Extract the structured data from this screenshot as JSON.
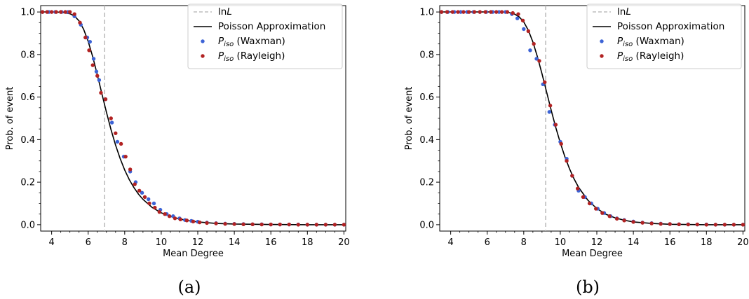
{
  "chart_data": [
    {
      "type": "line",
      "panel_label": "(a)",
      "xlabel": "Mean Degree",
      "ylabel": "Prob. of event",
      "xlim": [
        3.4,
        20.1
      ],
      "ylim": [
        -0.03,
        1.03
      ],
      "xticks": [
        "4",
        "6",
        "8",
        "10",
        "12",
        "14",
        "16",
        "18",
        "20"
      ],
      "yticks": [
        "0.0",
        "0.2",
        "0.4",
        "0.6",
        "0.8",
        "1.0"
      ],
      "vline": {
        "name": "lnL",
        "x": 6.9
      },
      "poisson_center": 6.9,
      "legend_position": "top-right",
      "legend": [
        "lnL",
        "Poisson Approximation",
        "P_iso (Waxman)",
        "P_iso (Rayleigh)"
      ],
      "series": [
        {
          "name": "Poisson Approximation",
          "kind": "line",
          "color": "#000000",
          "x": [
            3.5,
            4.0,
            4.5,
            5.0,
            5.25,
            5.5,
            5.75,
            6.0,
            6.25,
            6.5,
            6.75,
            7.0,
            7.25,
            7.5,
            7.75,
            8.0,
            8.25,
            8.5,
            8.75,
            9.0,
            9.5,
            10.0,
            10.5,
            11.0,
            11.5,
            12.0,
            13.0,
            14.0,
            16.0,
            18.0,
            20.0
          ],
          "y": [
            1.0,
            1.0,
            0.999,
            0.992,
            0.981,
            0.958,
            0.919,
            0.862,
            0.789,
            0.705,
            0.616,
            0.529,
            0.447,
            0.374,
            0.311,
            0.257,
            0.212,
            0.175,
            0.144,
            0.119,
            0.081,
            0.056,
            0.039,
            0.027,
            0.019,
            0.013,
            0.006,
            0.003,
            0.001,
            0.0,
            0.0
          ]
        },
        {
          "name": "P_iso (Waxman)",
          "kind": "scatter",
          "color": "#3c63d6",
          "x": [
            3.5,
            3.85,
            4.2,
            4.55,
            4.9,
            5.25,
            5.6,
            5.95,
            6.1,
            6.3,
            6.45,
            6.6,
            6.95,
            7.3,
            7.6,
            7.95,
            8.3,
            8.6,
            8.95,
            9.3,
            9.6,
            9.95,
            10.3,
            10.65,
            11.0,
            11.3,
            11.65,
            12.0,
            12.5,
            13.0,
            13.5,
            14.0,
            14.5,
            15.0,
            15.5,
            16.0,
            16.5,
            17.0,
            17.5,
            18.0,
            18.5,
            19.0,
            19.5,
            20.0
          ],
          "y": [
            1.0,
            1.0,
            1.0,
            1.0,
            1.0,
            0.98,
            0.94,
            0.88,
            0.86,
            0.78,
            0.72,
            0.68,
            0.59,
            0.48,
            0.39,
            0.32,
            0.25,
            0.2,
            0.15,
            0.12,
            0.1,
            0.07,
            0.05,
            0.04,
            0.03,
            0.022,
            0.018,
            0.014,
            0.01,
            0.007,
            0.005,
            0.004,
            0.003,
            0.002,
            0.002,
            0.001,
            0.001,
            0.001,
            0.001,
            0.0,
            0.0,
            0.0,
            0.0,
            0.0
          ]
        },
        {
          "name": "P_iso (Rayleigh)",
          "kind": "scatter",
          "color": "#b22222",
          "x": [
            3.5,
            3.75,
            4.0,
            4.25,
            4.5,
            4.75,
            5.0,
            5.25,
            5.55,
            5.85,
            6.05,
            6.25,
            6.5,
            6.7,
            6.95,
            7.25,
            7.5,
            7.8,
            8.05,
            8.3,
            8.55,
            8.8,
            9.1,
            9.35,
            9.65,
            9.9,
            10.2,
            10.45,
            10.75,
            11.05,
            11.4,
            11.75,
            12.1,
            12.5,
            13.0,
            13.5,
            14.0,
            14.5,
            15.0,
            15.5,
            16.0,
            16.5,
            17.0,
            17.5,
            18.0,
            18.5,
            19.0,
            19.5,
            20.0
          ],
          "y": [
            1.0,
            1.0,
            1.0,
            1.0,
            1.0,
            1.0,
            1.0,
            0.99,
            0.95,
            0.88,
            0.82,
            0.75,
            0.7,
            0.62,
            0.59,
            0.5,
            0.43,
            0.38,
            0.32,
            0.26,
            0.19,
            0.16,
            0.13,
            0.1,
            0.08,
            0.06,
            0.05,
            0.04,
            0.03,
            0.025,
            0.02,
            0.015,
            0.011,
            0.008,
            0.006,
            0.004,
            0.003,
            0.002,
            0.002,
            0.001,
            0.001,
            0.001,
            0.001,
            0.0,
            0.0,
            0.0,
            0.0,
            0.0,
            0.0
          ]
        }
      ]
    },
    {
      "type": "line",
      "panel_label": "(b)",
      "xlabel": "Mean Degree",
      "ylabel": "Prob. of event",
      "xlim": [
        3.4,
        20.1
      ],
      "ylim": [
        -0.03,
        1.03
      ],
      "xticks": [
        "4",
        "6",
        "8",
        "10",
        "12",
        "14",
        "16",
        "18",
        "20"
      ],
      "yticks": [
        "0.0",
        "0.2",
        "0.4",
        "0.6",
        "0.8",
        "1.0"
      ],
      "vline": {
        "name": "lnL",
        "x": 9.2
      },
      "poisson_center": 9.2,
      "legend_position": "top-right",
      "legend": [
        "lnL",
        "Poisson Approximation",
        "P_iso (Waxman)",
        "P_iso (Rayleigh)"
      ],
      "series": [
        {
          "name": "Poisson Approximation",
          "kind": "line",
          "color": "#000000",
          "x": [
            3.5,
            4.0,
            5.0,
            6.0,
            6.5,
            7.0,
            7.25,
            7.5,
            7.75,
            8.0,
            8.25,
            8.5,
            8.75,
            9.0,
            9.25,
            9.5,
            9.75,
            10.0,
            10.25,
            10.5,
            10.75,
            11.0,
            11.5,
            12.0,
            12.5,
            13.0,
            13.5,
            14.0,
            15.0,
            16.0,
            18.0,
            20.0
          ],
          "y": [
            1.0,
            1.0,
            1.0,
            1.0,
            1.0,
            0.999,
            0.996,
            0.99,
            0.977,
            0.953,
            0.914,
            0.859,
            0.789,
            0.709,
            0.624,
            0.539,
            0.458,
            0.385,
            0.32,
            0.264,
            0.216,
            0.176,
            0.116,
            0.076,
            0.049,
            0.032,
            0.021,
            0.013,
            0.006,
            0.002,
            0.0,
            0.0
          ]
        },
        {
          "name": "P_iso (Waxman)",
          "kind": "scatter",
          "color": "#3c63d6",
          "x": [
            3.5,
            3.85,
            4.2,
            4.55,
            4.9,
            5.25,
            5.6,
            5.95,
            6.3,
            6.65,
            7.0,
            7.35,
            7.65,
            8.0,
            8.35,
            8.7,
            9.05,
            9.4,
            9.7,
            10.0,
            10.35,
            10.65,
            11.0,
            11.35,
            11.7,
            12.05,
            12.4,
            12.75,
            13.1,
            13.5,
            14.0,
            14.5,
            15.0,
            15.5,
            16.0,
            16.5,
            17.0,
            17.5,
            18.0,
            18.5,
            19.0,
            19.5,
            20.0
          ],
          "y": [
            1.0,
            1.0,
            1.0,
            1.0,
            1.0,
            1.0,
            1.0,
            1.0,
            1.0,
            1.0,
            1.0,
            0.99,
            0.97,
            0.92,
            0.82,
            0.78,
            0.66,
            0.53,
            0.47,
            0.39,
            0.31,
            0.23,
            0.16,
            0.13,
            0.1,
            0.075,
            0.055,
            0.04,
            0.03,
            0.022,
            0.015,
            0.01,
            0.007,
            0.005,
            0.003,
            0.002,
            0.002,
            0.001,
            0.001,
            0.0,
            0.0,
            0.0,
            0.0
          ]
        },
        {
          "name": "P_iso (Rayleigh)",
          "kind": "scatter",
          "color": "#b22222",
          "x": [
            3.5,
            3.8,
            4.1,
            4.4,
            4.7,
            5.0,
            5.3,
            5.6,
            5.9,
            6.2,
            6.5,
            6.8,
            7.1,
            7.4,
            7.7,
            7.95,
            8.25,
            8.55,
            8.85,
            9.15,
            9.45,
            9.75,
            10.05,
            10.35,
            10.65,
            10.95,
            11.25,
            11.6,
            11.95,
            12.3,
            12.7,
            13.1,
            13.5,
            14.0,
            14.5,
            15.0,
            15.5,
            16.0,
            16.5,
            17.0,
            17.5,
            18.0,
            18.5,
            19.0,
            19.5,
            20.0
          ],
          "y": [
            1.0,
            1.0,
            1.0,
            1.0,
            1.0,
            1.0,
            1.0,
            1.0,
            1.0,
            1.0,
            1.0,
            1.0,
            1.0,
            0.995,
            0.99,
            0.96,
            0.91,
            0.85,
            0.77,
            0.67,
            0.56,
            0.47,
            0.38,
            0.3,
            0.23,
            0.17,
            0.13,
            0.1,
            0.075,
            0.055,
            0.04,
            0.028,
            0.02,
            0.013,
            0.009,
            0.006,
            0.004,
            0.003,
            0.002,
            0.001,
            0.001,
            0.0,
            0.0,
            0.0,
            0.0,
            0.0
          ]
        }
      ]
    }
  ]
}
